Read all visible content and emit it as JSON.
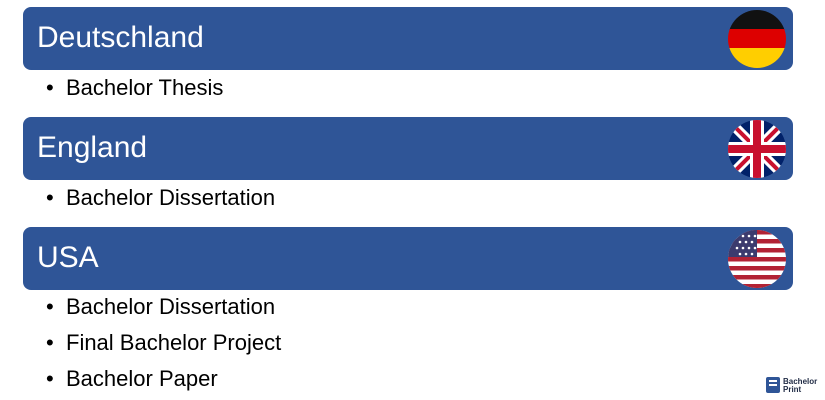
{
  "sections": [
    {
      "title": "Deutschland",
      "items": [
        "Bachelor Thesis"
      ]
    },
    {
      "title": "England",
      "items": [
        "Bachelor Dissertation"
      ]
    },
    {
      "title": "USA",
      "items": [
        "Bachelor Dissertation",
        "Final Bachelor Project",
        "Bachelor Paper"
      ]
    }
  ],
  "logo": {
    "line1": "Bachelor",
    "line2": "Print"
  }
}
